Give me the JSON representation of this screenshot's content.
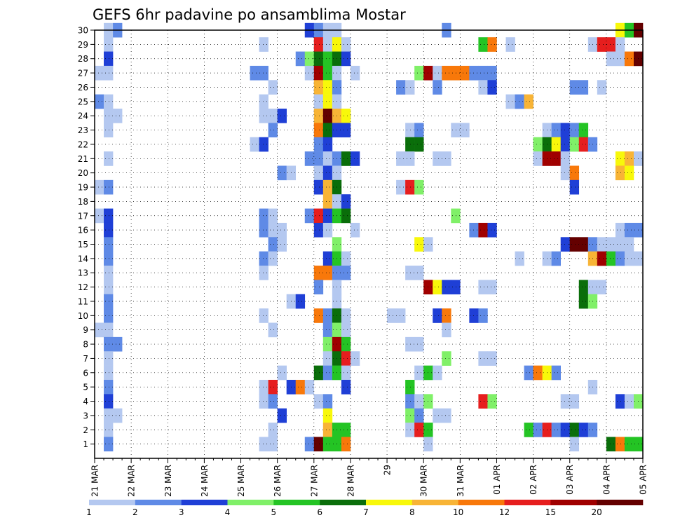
{
  "chart_data": {
    "type": "heatmap",
    "title": "GEFS 6hr padavine po ansamblima Mostar",
    "xlabel": "",
    "ylabel": "",
    "x_tick_labels": [
      "21 MAR",
      "22 MAR",
      "23 MAR",
      "24 MAR",
      "25 MAR",
      "26 MAR",
      "27 MAR",
      "28 MAR",
      "29",
      "30 MAR",
      "31 MAR",
      "01 APR",
      "02 APR",
      "03 APR",
      "04 APR",
      "05 APR"
    ],
    "y_tick_labels": [
      "1",
      "2",
      "3",
      "4",
      "5",
      "6",
      "7",
      "8",
      "9",
      "10",
      "11",
      "12",
      "13",
      "14",
      "15",
      "16",
      "17",
      "18",
      "19",
      "20",
      "21",
      "22",
      "23",
      "24",
      "25",
      "26",
      "27",
      "28",
      "29",
      "30"
    ],
    "xlim": [
      0,
      60
    ],
    "ylim": [
      0,
      30
    ],
    "grid": true,
    "color_levels": [
      "1",
      "2",
      "3",
      "4",
      "5",
      "6",
      "7",
      "8",
      "10",
      "12",
      "15",
      "20"
    ],
    "colors": [
      "#b4c8f0",
      "#5f8ae6",
      "#1f3fd6",
      "#80f068",
      "#24c424",
      "#0a6e0a",
      "#f8f80a",
      "#f8b436",
      "#f8780a",
      "#e61e1e",
      "#a00000",
      "#640000"
    ],
    "cells": [
      [
        1,
        30,
        1
      ],
      [
        2,
        30,
        2
      ],
      [
        23,
        30,
        3
      ],
      [
        24,
        30,
        2
      ],
      [
        25,
        30,
        1
      ],
      [
        26,
        30,
        1
      ],
      [
        38,
        30,
        2
      ],
      [
        57,
        30,
        7
      ],
      [
        58,
        30,
        5
      ],
      [
        59,
        30,
        12
      ],
      [
        1,
        29,
        1
      ],
      [
        18,
        29,
        1
      ],
      [
        24,
        29,
        10
      ],
      [
        25,
        29,
        1
      ],
      [
        26,
        29,
        7
      ],
      [
        27,
        29,
        1
      ],
      [
        42,
        29,
        5
      ],
      [
        43,
        29,
        9
      ],
      [
        45,
        29,
        1
      ],
      [
        54,
        29,
        1
      ],
      [
        55,
        29,
        10
      ],
      [
        56,
        29,
        10
      ],
      [
        57,
        29,
        1
      ],
      [
        1,
        28,
        3
      ],
      [
        22,
        28,
        2
      ],
      [
        23,
        28,
        4
      ],
      [
        24,
        28,
        6
      ],
      [
        25,
        28,
        5
      ],
      [
        26,
        28,
        6
      ],
      [
        27,
        28,
        3
      ],
      [
        56,
        28,
        1
      ],
      [
        57,
        28,
        1
      ],
      [
        58,
        28,
        9
      ],
      [
        59,
        28,
        12
      ],
      [
        0,
        27,
        1
      ],
      [
        1,
        27,
        1
      ],
      [
        17,
        27,
        2
      ],
      [
        18,
        27,
        2
      ],
      [
        23,
        27,
        1
      ],
      [
        24,
        27,
        11
      ],
      [
        25,
        27,
        5
      ],
      [
        26,
        27,
        1
      ],
      [
        28,
        27,
        1
      ],
      [
        35,
        27,
        4
      ],
      [
        36,
        27,
        11
      ],
      [
        37,
        27,
        1
      ],
      [
        38,
        27,
        9
      ],
      [
        39,
        27,
        9
      ],
      [
        40,
        27,
        9
      ],
      [
        41,
        27,
        2
      ],
      [
        42,
        27,
        2
      ],
      [
        43,
        27,
        2
      ],
      [
        19,
        26,
        1
      ],
      [
        24,
        26,
        8
      ],
      [
        25,
        26,
        7
      ],
      [
        26,
        26,
        2
      ],
      [
        33,
        26,
        2
      ],
      [
        34,
        26,
        1
      ],
      [
        37,
        26,
        2
      ],
      [
        42,
        26,
        1
      ],
      [
        43,
        26,
        3
      ],
      [
        52,
        26,
        2
      ],
      [
        53,
        26,
        2
      ],
      [
        55,
        26,
        1
      ],
      [
        0,
        25,
        2
      ],
      [
        1,
        25,
        1
      ],
      [
        18,
        25,
        1
      ],
      [
        24,
        25,
        1
      ],
      [
        25,
        25,
        7
      ],
      [
        26,
        25,
        1
      ],
      [
        45,
        25,
        1
      ],
      [
        46,
        25,
        2
      ],
      [
        47,
        25,
        8
      ],
      [
        1,
        24,
        1
      ],
      [
        2,
        24,
        1
      ],
      [
        18,
        24,
        1
      ],
      [
        19,
        24,
        1
      ],
      [
        20,
        24,
        3
      ],
      [
        24,
        24,
        8
      ],
      [
        25,
        24,
        12
      ],
      [
        26,
        24,
        8
      ],
      [
        27,
        24,
        7
      ],
      [
        1,
        23,
        1
      ],
      [
        19,
        23,
        2
      ],
      [
        24,
        23,
        9
      ],
      [
        25,
        23,
        6
      ],
      [
        26,
        23,
        3
      ],
      [
        27,
        23,
        3
      ],
      [
        34,
        23,
        1
      ],
      [
        35,
        23,
        2
      ],
      [
        39,
        23,
        1
      ],
      [
        40,
        23,
        1
      ],
      [
        49,
        23,
        1
      ],
      [
        50,
        23,
        2
      ],
      [
        51,
        23,
        3
      ],
      [
        52,
        23,
        2
      ],
      [
        53,
        23,
        5
      ],
      [
        17,
        22,
        1
      ],
      [
        18,
        22,
        3
      ],
      [
        24,
        22,
        2
      ],
      [
        25,
        22,
        3
      ],
      [
        34,
        22,
        6
      ],
      [
        35,
        22,
        6
      ],
      [
        48,
        22,
        4
      ],
      [
        49,
        22,
        6
      ],
      [
        50,
        22,
        7
      ],
      [
        51,
        22,
        3
      ],
      [
        52,
        22,
        4
      ],
      [
        53,
        22,
        10
      ],
      [
        54,
        22,
        2
      ],
      [
        1,
        21,
        1
      ],
      [
        23,
        21,
        2
      ],
      [
        24,
        21,
        2
      ],
      [
        25,
        21,
        1
      ],
      [
        26,
        21,
        2
      ],
      [
        27,
        21,
        6
      ],
      [
        28,
        21,
        3
      ],
      [
        33,
        21,
        1
      ],
      [
        34,
        21,
        1
      ],
      [
        37,
        21,
        1
      ],
      [
        38,
        21,
        1
      ],
      [
        48,
        21,
        1
      ],
      [
        49,
        21,
        11
      ],
      [
        50,
        21,
        11
      ],
      [
        51,
        21,
        1
      ],
      [
        57,
        21,
        7
      ],
      [
        58,
        21,
        8
      ],
      [
        59,
        21,
        1
      ],
      [
        20,
        20,
        2
      ],
      [
        21,
        20,
        1
      ],
      [
        24,
        20,
        1
      ],
      [
        25,
        20,
        3
      ],
      [
        26,
        20,
        1
      ],
      [
        51,
        20,
        1
      ],
      [
        52,
        20,
        9
      ],
      [
        57,
        20,
        8
      ],
      [
        58,
        20,
        7
      ],
      [
        0,
        19,
        1
      ],
      [
        1,
        19,
        2
      ],
      [
        24,
        19,
        3
      ],
      [
        25,
        19,
        8
      ],
      [
        26,
        19,
        6
      ],
      [
        33,
        19,
        1
      ],
      [
        34,
        19,
        10
      ],
      [
        35,
        19,
        4
      ],
      [
        52,
        19,
        3
      ],
      [
        25,
        18,
        8
      ],
      [
        26,
        18,
        1
      ],
      [
        27,
        18,
        3
      ],
      [
        0,
        17,
        1
      ],
      [
        1,
        17,
        3
      ],
      [
        18,
        17,
        2
      ],
      [
        19,
        17,
        1
      ],
      [
        23,
        17,
        2
      ],
      [
        24,
        17,
        10
      ],
      [
        25,
        17,
        3
      ],
      [
        26,
        17,
        5
      ],
      [
        27,
        17,
        6
      ],
      [
        39,
        17,
        4
      ],
      [
        1,
        16,
        3
      ],
      [
        18,
        16,
        2
      ],
      [
        19,
        16,
        1
      ],
      [
        20,
        16,
        1
      ],
      [
        24,
        16,
        3
      ],
      [
        25,
        16,
        1
      ],
      [
        28,
        16,
        1
      ],
      [
        41,
        16,
        2
      ],
      [
        42,
        16,
        11
      ],
      [
        43,
        16,
        3
      ],
      [
        57,
        16,
        1
      ],
      [
        58,
        16,
        2
      ],
      [
        59,
        16,
        2
      ],
      [
        1,
        15,
        2
      ],
      [
        19,
        15,
        2
      ],
      [
        20,
        15,
        1
      ],
      [
        26,
        15,
        4
      ],
      [
        35,
        15,
        7
      ],
      [
        36,
        15,
        1
      ],
      [
        51,
        15,
        3
      ],
      [
        52,
        15,
        12
      ],
      [
        53,
        15,
        12
      ],
      [
        54,
        15,
        2
      ],
      [
        55,
        15,
        1
      ],
      [
        56,
        15,
        1
      ],
      [
        57,
        15,
        1
      ],
      [
        58,
        15,
        1
      ],
      [
        1,
        14,
        2
      ],
      [
        18,
        14,
        2
      ],
      [
        19,
        14,
        1
      ],
      [
        25,
        14,
        3
      ],
      [
        26,
        14,
        5
      ],
      [
        27,
        14,
        1
      ],
      [
        46,
        14,
        1
      ],
      [
        49,
        14,
        1
      ],
      [
        50,
        14,
        2
      ],
      [
        54,
        14,
        8
      ],
      [
        55,
        14,
        11
      ],
      [
        56,
        14,
        5
      ],
      [
        57,
        14,
        2
      ],
      [
        58,
        14,
        1
      ],
      [
        59,
        14,
        1
      ],
      [
        1,
        13,
        1
      ],
      [
        18,
        13,
        1
      ],
      [
        24,
        13,
        9
      ],
      [
        25,
        13,
        9
      ],
      [
        26,
        13,
        2
      ],
      [
        27,
        13,
        2
      ],
      [
        34,
        13,
        1
      ],
      [
        35,
        13,
        1
      ],
      [
        1,
        12,
        1
      ],
      [
        24,
        12,
        2
      ],
      [
        26,
        12,
        1
      ],
      [
        36,
        12,
        11
      ],
      [
        37,
        12,
        7
      ],
      [
        38,
        12,
        3
      ],
      [
        39,
        12,
        3
      ],
      [
        42,
        12,
        1
      ],
      [
        43,
        12,
        1
      ],
      [
        53,
        12,
        6
      ],
      [
        54,
        12,
        1
      ],
      [
        55,
        12,
        1
      ],
      [
        1,
        11,
        2
      ],
      [
        21,
        11,
        1
      ],
      [
        22,
        11,
        3
      ],
      [
        26,
        11,
        1
      ],
      [
        53,
        11,
        6
      ],
      [
        54,
        11,
        4
      ],
      [
        1,
        10,
        2
      ],
      [
        18,
        10,
        1
      ],
      [
        24,
        10,
        9
      ],
      [
        25,
        10,
        2
      ],
      [
        26,
        10,
        6
      ],
      [
        27,
        10,
        1
      ],
      [
        32,
        10,
        1
      ],
      [
        33,
        10,
        1
      ],
      [
        37,
        10,
        3
      ],
      [
        38,
        10,
        9
      ],
      [
        41,
        10,
        3
      ],
      [
        42,
        10,
        2
      ],
      [
        0,
        9,
        1
      ],
      [
        1,
        9,
        1
      ],
      [
        19,
        9,
        1
      ],
      [
        25,
        9,
        2
      ],
      [
        26,
        9,
        4
      ],
      [
        27,
        9,
        1
      ],
      [
        38,
        9,
        1
      ],
      [
        1,
        8,
        2
      ],
      [
        2,
        8,
        2
      ],
      [
        25,
        8,
        4
      ],
      [
        26,
        8,
        11
      ],
      [
        27,
        8,
        5
      ],
      [
        34,
        8,
        1
      ],
      [
        35,
        8,
        1
      ],
      [
        1,
        7,
        1
      ],
      [
        25,
        7,
        1
      ],
      [
        26,
        7,
        6
      ],
      [
        27,
        7,
        10
      ],
      [
        28,
        7,
        1
      ],
      [
        38,
        7,
        4
      ],
      [
        42,
        7,
        1
      ],
      [
        43,
        7,
        1
      ],
      [
        1,
        6,
        1
      ],
      [
        20,
        6,
        1
      ],
      [
        24,
        6,
        6
      ],
      [
        25,
        6,
        2
      ],
      [
        26,
        6,
        5
      ],
      [
        27,
        6,
        1
      ],
      [
        35,
        6,
        1
      ],
      [
        36,
        6,
        5
      ],
      [
        37,
        6,
        1
      ],
      [
        47,
        6,
        2
      ],
      [
        48,
        6,
        9
      ],
      [
        49,
        6,
        7
      ],
      [
        50,
        6,
        2
      ],
      [
        1,
        5,
        2
      ],
      [
        18,
        5,
        1
      ],
      [
        19,
        5,
        10
      ],
      [
        21,
        5,
        3
      ],
      [
        22,
        5,
        9
      ],
      [
        23,
        5,
        1
      ],
      [
        27,
        5,
        3
      ],
      [
        34,
        5,
        5
      ],
      [
        54,
        5,
        1
      ],
      [
        1,
        4,
        3
      ],
      [
        18,
        4,
        1
      ],
      [
        19,
        4,
        2
      ],
      [
        24,
        4,
        1
      ],
      [
        25,
        4,
        2
      ],
      [
        34,
        4,
        2
      ],
      [
        35,
        4,
        1
      ],
      [
        36,
        4,
        4
      ],
      [
        42,
        4,
        10
      ],
      [
        43,
        4,
        4
      ],
      [
        51,
        4,
        1
      ],
      [
        52,
        4,
        1
      ],
      [
        57,
        4,
        3
      ],
      [
        58,
        4,
        1
      ],
      [
        59,
        4,
        4
      ],
      [
        1,
        3,
        1
      ],
      [
        2,
        3,
        1
      ],
      [
        20,
        3,
        3
      ],
      [
        25,
        3,
        7
      ],
      [
        34,
        3,
        4
      ],
      [
        35,
        3,
        2
      ],
      [
        37,
        3,
        1
      ],
      [
        38,
        3,
        1
      ],
      [
        1,
        2,
        1
      ],
      [
        19,
        2,
        1
      ],
      [
        25,
        2,
        8
      ],
      [
        26,
        2,
        5
      ],
      [
        27,
        2,
        5
      ],
      [
        34,
        2,
        1
      ],
      [
        35,
        2,
        10
      ],
      [
        36,
        2,
        5
      ],
      [
        47,
        2,
        5
      ],
      [
        48,
        2,
        2
      ],
      [
        49,
        2,
        10
      ],
      [
        50,
        2,
        2
      ],
      [
        51,
        2,
        3
      ],
      [
        52,
        2,
        6
      ],
      [
        53,
        2,
        3
      ],
      [
        54,
        2,
        2
      ],
      [
        1,
        1,
        2
      ],
      [
        18,
        1,
        1
      ],
      [
        19,
        1,
        1
      ],
      [
        23,
        1,
        2
      ],
      [
        24,
        1,
        12
      ],
      [
        25,
        1,
        5
      ],
      [
        26,
        1,
        5
      ],
      [
        27,
        1,
        9
      ],
      [
        36,
        1,
        1
      ],
      [
        52,
        1,
        1
      ],
      [
        56,
        1,
        6
      ],
      [
        57,
        1,
        9
      ],
      [
        58,
        1,
        5
      ],
      [
        59,
        1,
        5
      ]
    ]
  }
}
